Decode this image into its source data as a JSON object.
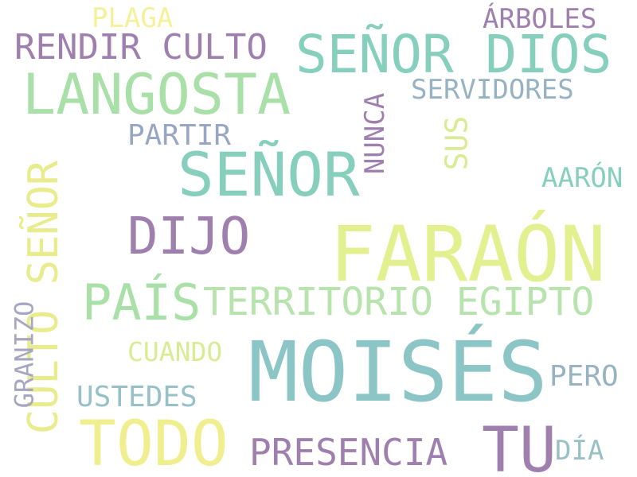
{
  "palette": {
    "teal": "#86cfbd",
    "green": "#a9e0a8",
    "yellow": "#f0ef8f",
    "purple": "#9e7fae",
    "slate": "#97b3c3"
  },
  "words": [
    {
      "text": "FARAÓN",
      "color": "#e3f08f"
    },
    {
      "text": "MOISÉS",
      "color": "#8bc5c5"
    },
    {
      "text": "SEÑOR",
      "color": "#86cfbd"
    },
    {
      "text": "SEÑOR DIOS",
      "color": "#86cfbd"
    },
    {
      "text": "LANGOSTA",
      "color": "#a9e0a8"
    },
    {
      "text": "TODO",
      "color": "#f0ef8f"
    },
    {
      "text": "TU",
      "color": "#9e7fae"
    },
    {
      "text": "DIJO",
      "color": "#9e7fae"
    },
    {
      "text": "PAÍS",
      "color": "#a9e0a8"
    },
    {
      "text": "TERRITORIO EGIPTO",
      "color": "#b7e3ad"
    },
    {
      "text": "CULTO SEÑOR",
      "color": "#e8ec8c"
    },
    {
      "text": "RENDIR CULTO",
      "color": "#9e7fae"
    },
    {
      "text": "PRESENCIA",
      "color": "#9e7fae"
    },
    {
      "text": "USTEDES",
      "color": "#97c0c7"
    },
    {
      "text": "CUANDO",
      "color": "#d9ec94"
    },
    {
      "text": "PARTIR",
      "color": "#97a6c3"
    },
    {
      "text": "SERVIDORES",
      "color": "#97b3c3"
    },
    {
      "text": "ÁRBOLES",
      "color": "#9e7fae"
    },
    {
      "text": "AARÓN",
      "color": "#86cfbd"
    },
    {
      "text": "PLAGA",
      "color": "#f5f09a"
    },
    {
      "text": "NUNCA",
      "color": "#9e7fae"
    },
    {
      "text": "SUS",
      "color": "#d9ec94"
    },
    {
      "text": "PERO",
      "color": "#97b3c3"
    },
    {
      "text": "DÍA",
      "color": "#97c0c7"
    },
    {
      "text": "GRANIZO",
      "color": "#a6a6c3"
    }
  ]
}
